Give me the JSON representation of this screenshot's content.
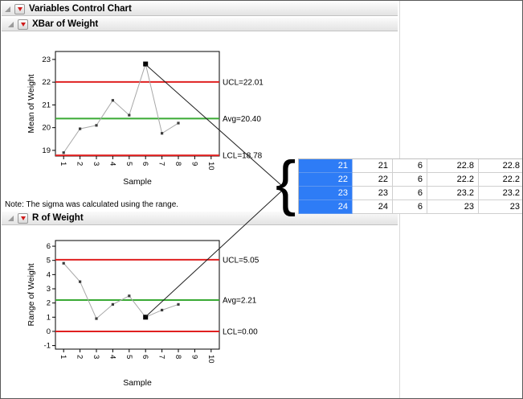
{
  "outline_headers": [
    {
      "title": "Variables Control Chart"
    },
    {
      "title": "XBar of Weight"
    },
    {
      "title": "R of Weight"
    }
  ],
  "note": "Note: The sigma was calculated using the range.",
  "chart_data": [
    {
      "type": "line",
      "title": "XBar of Weight",
      "xlabel": "Sample",
      "ylabel": "Mean of Weight",
      "x": [
        1,
        2,
        3,
        4,
        5,
        6,
        7,
        8
      ],
      "values": [
        18.9,
        19.95,
        20.1,
        21.2,
        20.55,
        22.8,
        19.75,
        20.2
      ],
      "selected_index": 5,
      "xticks": [
        1,
        2,
        3,
        4,
        5,
        6,
        7,
        8,
        9,
        10
      ],
      "yticks": [
        19,
        20,
        21,
        22,
        23
      ],
      "xlim": [
        0.5,
        10.5
      ],
      "ylim": [
        18.75,
        23.35
      ],
      "grid": false,
      "limits": [
        {
          "label": "UCL=22.01",
          "value": 22.01,
          "color": "#e02020"
        },
        {
          "label": "Avg=20.40",
          "value": 20.4,
          "color": "#3aaa35"
        },
        {
          "label": "LCL=18.78",
          "value": 18.78,
          "color": "#e02020"
        }
      ]
    },
    {
      "type": "line",
      "title": "R of Weight",
      "xlabel": "Sample",
      "ylabel": "Range of Weight",
      "x": [
        1,
        2,
        3,
        4,
        5,
        6,
        7,
        8
      ],
      "values": [
        4.8,
        3.5,
        0.9,
        1.9,
        2.5,
        1.0,
        1.5,
        1.9
      ],
      "selected_index": 5,
      "xticks": [
        1,
        2,
        3,
        4,
        5,
        6,
        7,
        8,
        9,
        10
      ],
      "yticks": [
        -1,
        0,
        1,
        2,
        3,
        4,
        5,
        6
      ],
      "xlim": [
        0.5,
        10.5
      ],
      "ylim": [
        -1.25,
        6.4
      ],
      "grid": false,
      "limits": [
        {
          "label": "UCL=5.05",
          "value": 5.05,
          "color": "#e02020"
        },
        {
          "label": "Avg=2.21",
          "value": 2.21,
          "color": "#3aaa35"
        },
        {
          "label": "LCL=0.00",
          "value": 0.0,
          "color": "#e02020"
        }
      ]
    }
  ],
  "table": {
    "rows": [
      [
        "21",
        "21",
        "6",
        "22.8",
        "22.8"
      ],
      [
        "22",
        "22",
        "6",
        "22.2",
        "22.2"
      ],
      [
        "23",
        "23",
        "6",
        "23.2",
        "23.2"
      ],
      [
        "24",
        "24",
        "6",
        "23",
        "23"
      ]
    ]
  },
  "annotation": {
    "brace": "{"
  },
  "colors": {
    "selection_blue": "#2e7cf6",
    "series_gray": "#a8a8a8",
    "marker": "#3c3c3c",
    "limit_red": "#e02020",
    "avg_green": "#3aaa35",
    "annotation_line": "#1f1f1f"
  }
}
